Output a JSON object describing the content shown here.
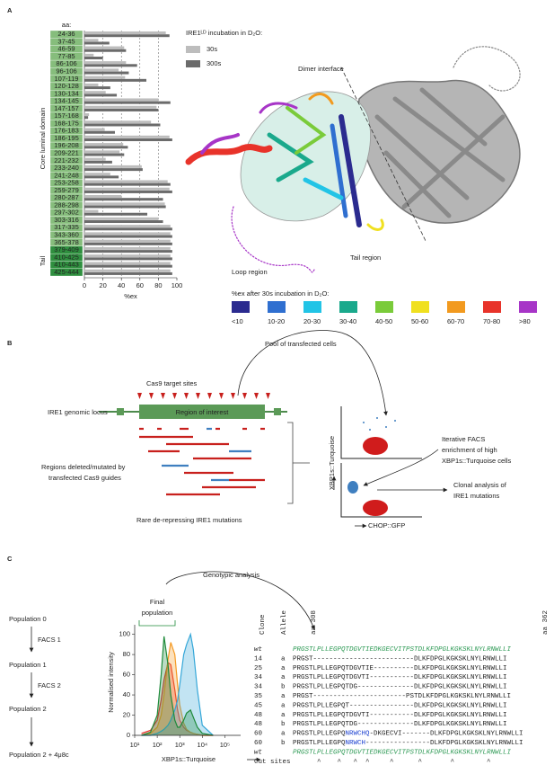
{
  "panels": [
    "A",
    "B",
    "C"
  ],
  "chart_data": [
    {
      "type": "bar",
      "orientation": "horizontal",
      "categories_label": "aa:",
      "group_labels": [
        "Core luminal domain",
        "Tail"
      ],
      "categories": [
        "24-36",
        "37-45",
        "46-59",
        "77-85",
        "86-106",
        "96-106",
        "107-119",
        "120-128",
        "130-134",
        "134-145",
        "147-157",
        "157-168",
        "168-175",
        "176-183",
        "186-195",
        "196-208",
        "209-221",
        "221-232",
        "233-240",
        "241-248",
        "253-258",
        "259-279",
        "280-287",
        "288-298",
        "297-302",
        "303-316",
        "317-335",
        "343-360",
        "365-378",
        "379-409",
        "410-425",
        "410-443",
        "425-444"
      ],
      "legend_title": "IRE1ᴸᴰ incubation in D₂O:",
      "series": [
        {
          "name": "30s",
          "color": "#bdbdbd",
          "values": [
            88,
            15,
            43,
            10,
            45,
            37,
            44,
            15,
            23,
            80,
            78,
            5,
            72,
            22,
            92,
            42,
            38,
            23,
            62,
            28,
            90,
            92,
            40,
            87,
            15,
            80,
            93,
            93,
            93,
            93,
            93,
            93,
            93
          ]
        },
        {
          "name": "300s",
          "color": "#6b6b6b",
          "values": [
            92,
            27,
            45,
            20,
            57,
            48,
            67,
            28,
            35,
            93,
            80,
            4,
            82,
            33,
            95,
            47,
            43,
            30,
            63,
            37,
            93,
            95,
            85,
            88,
            68,
            85,
            95,
            95,
            95,
            95,
            95,
            95,
            95
          ]
        }
      ],
      "xlim": [
        0,
        100
      ],
      "xticks": [
        0,
        20,
        40,
        60,
        80,
        100
      ],
      "xlabel": "%ex",
      "grid": true
    },
    {
      "type": "line",
      "xlog": true,
      "ylabel": "Normalised intensity",
      "xlabel": "XBP1s::Turquoise",
      "x": [
        20,
        50,
        100,
        150,
        200,
        300,
        400,
        600,
        800,
        1000,
        1500,
        2000,
        3000,
        4000,
        6000,
        10000,
        30000
      ],
      "series": [
        {
          "name": "Population 0",
          "color": "#e8322b",
          "values": [
            2,
            5,
            15,
            35,
            55,
            72,
            70,
            45,
            25,
            15,
            8,
            5,
            3,
            2,
            1,
            0,
            0
          ]
        },
        {
          "name": "Population 1",
          "color": "#f59a23",
          "values": [
            0,
            2,
            8,
            20,
            40,
            75,
            92,
            80,
            50,
            30,
            12,
            6,
            3,
            2,
            1,
            0,
            0
          ]
        },
        {
          "name": "Population 2",
          "color": "#35a7d8",
          "values": [
            0,
            0,
            2,
            4,
            6,
            10,
            15,
            25,
            35,
            50,
            80,
            90,
            100,
            85,
            45,
            10,
            0
          ]
        },
        {
          "name": "Population 2 + 4μ8c",
          "color": "#1e8a3a",
          "values": [
            0,
            3,
            20,
            60,
            98,
            70,
            40,
            15,
            8,
            8,
            15,
            22,
            25,
            18,
            8,
            2,
            0
          ]
        }
      ],
      "xlim": [
        10,
        500000
      ],
      "xticks": [
        {
          "value": 10,
          "label": "10¹"
        },
        {
          "value": 100,
          "label": "10²"
        },
        {
          "value": 1000,
          "label": "10³"
        },
        {
          "value": 10000,
          "label": "10⁴"
        },
        {
          "value": 100000,
          "label": "10⁵"
        }
      ],
      "ylim": [
        0,
        105
      ],
      "yticks": [
        0,
        20,
        40,
        60,
        80,
        100
      ]
    }
  ],
  "structure_labels": [
    "Dimer interface",
    "Loop region",
    "Tail region"
  ],
  "color_scale": {
    "title": "%ex after 30s incubation in D₂O:",
    "labels": [
      "<10",
      "10-20",
      "20-30",
      "30-40",
      "40-50",
      "50-60",
      "60-70",
      "70-80",
      ">80"
    ],
    "colors": [
      "#2b2b8f",
      "#2f6fd0",
      "#22c4e6",
      "#1aa98c",
      "#7acb3a",
      "#f0e020",
      "#f29a1f",
      "#e8332a",
      "#a735c7"
    ]
  },
  "workflow": {
    "cas9_sites": "Cas9 target sites",
    "locus": "IRE1 genomic locus",
    "region": "Region of interest",
    "deleted": [
      "Regions deleted/mutated by",
      "transfected Cas9 guides"
    ],
    "rare": "Rare de-repressing IRE1 mutations",
    "pool": "Pool of transfected cells",
    "facs_y": "XBP1s::Turquoise",
    "facs_x": "CHOP::GFP",
    "iterative": [
      "Iterative FACS",
      "enrichment of high",
      "XBP1s::Turquoise cells"
    ],
    "clonal": [
      "Clonal analysis of",
      "IRE1 mutations"
    ]
  },
  "genotyping": {
    "title": "Genotypic analysis",
    "final": [
      "Final",
      "population"
    ],
    "steps": [
      "FACS 1",
      "FACS 2"
    ],
    "table": {
      "headers": [
        "Clone",
        "Allele",
        "aa 308",
        "aa 362"
      ],
      "rows": [
        {
          "clone": "wt",
          "seq": [
            "PRGSTLPLLEGPQTDGVTIEDKGECVITPSTDLKFDPGLKGKSKLNYLRNWLLI"
          ]
        },
        {
          "clone": "14",
          "allele": "a",
          "seq": [
            "PRGST-------------------------DLKFDPGLKGKSKLNYLRNWLLI"
          ]
        },
        {
          "clone": "25",
          "allele": "a",
          "seq": [
            "PRGSTLPLLEGPQTDGVTIE----------DLKFDPGLKGKSKLNYLRNWLLI"
          ]
        },
        {
          "clone": "34",
          "allele": "a",
          "seq": [
            "PRGSTLPLLEGPQTDGVTI-----------DLKFDPGLKGKSKLNYLRNWLLI"
          ]
        },
        {
          "clone": "34",
          "allele": "b",
          "seq": [
            "PRGSTLPLLEGPQTDG--------------DLKFDPGLKGKSKLNYLRNWLLI"
          ]
        },
        {
          "clone": "35",
          "allele": "a",
          "seq": [
            "PRGST-----------------------PSTDLKFDPGLKGKSKLNYLRNWLLI"
          ]
        },
        {
          "clone": "45",
          "allele": "a",
          "seq": [
            "PRGSTLPLLEGPQT----------------DLKFDPGLKGKSKLNYLRNWLLI"
          ]
        },
        {
          "clone": "48",
          "allele": "a",
          "seq": [
            "PRGSTLPLLEGPQTDGVTI-----------DLKFDPGLKGKSKLNYLRNWLLI"
          ]
        },
        {
          "clone": "48",
          "allele": "b",
          "seq": [
            "PRGSTLPLLEGPQTDG--------------DLKFDPGLKGKSKLNYLRNWLLI"
          ]
        },
        {
          "clone": "60",
          "allele": "a",
          "seq": [
            "PRGSTLPLLEGPQ",
            "NRWCHQ",
            "-DKGECVI-------DLKFDPGLKGKSKLNYLRNWLLI"
          ]
        },
        {
          "clone": "60",
          "allele": "b",
          "seq": [
            "PRGSTLPLLEGPQ",
            "NRWCH",
            "----------------DLKFDPGLKGKSKLNYLRNWLLI"
          ]
        },
        {
          "clone": "wt",
          "seq": [
            "PRGSTLPLLEGPQTDGVTIEDKGECVITPSTDLKFDPGLKGKSKLNYLRNWLLI"
          ]
        },
        {
          "clone": "Cut sites",
          "seq": [
            "      ^    ^   ^  ^     ^      ^       ^        ^"
          ]
        }
      ]
    }
  }
}
